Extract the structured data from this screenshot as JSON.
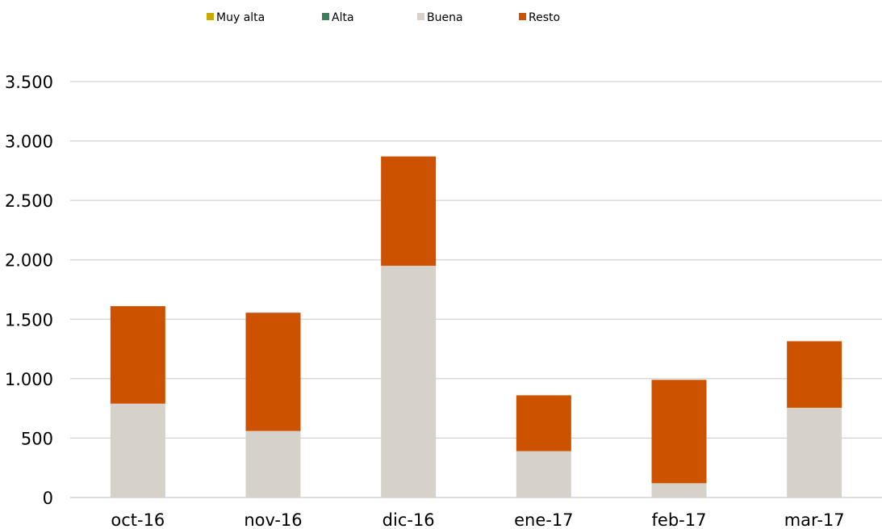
{
  "chart_data": {
    "type": "bar",
    "stacked": true,
    "categories": [
      "oct-16",
      "nov-16",
      "dic-16",
      "ene-17",
      "feb-17",
      "mar-17"
    ],
    "series": [
      {
        "name": "Muy alta",
        "color": "#c9a800",
        "values": [
          0,
          0,
          0,
          0,
          0,
          0
        ]
      },
      {
        "name": "Alta",
        "color": "#3e7d5a",
        "values": [
          0,
          0,
          0,
          0,
          0,
          0
        ]
      },
      {
        "name": "Buena",
        "color": "#d6d2ca",
        "values": [
          790,
          560,
          1950,
          390,
          120,
          755
        ]
      },
      {
        "name": "Resto",
        "color": "#cc5200",
        "values": [
          820,
          995,
          920,
          470,
          870,
          560
        ]
      }
    ],
    "ylim": [
      0,
      3500
    ],
    "yticks": [
      0,
      500,
      1000,
      1500,
      2000,
      2500,
      3000,
      3500
    ],
    "ytick_labels": [
      "0",
      "500",
      "1.000",
      "1.500",
      "2.000",
      "2.500",
      "3.000",
      "3.500"
    ],
    "grid": true,
    "legend_position": "top",
    "xlabel": "",
    "ylabel": ""
  }
}
